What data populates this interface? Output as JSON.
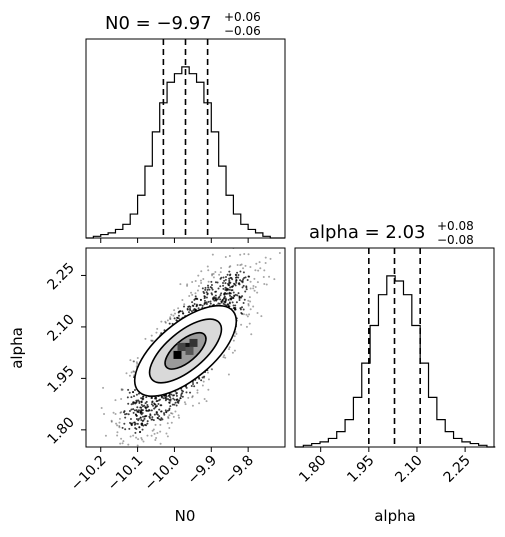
{
  "chart_data": [
    {
      "type": "histogram",
      "panel": "N0 marginal",
      "title_main": "N0 = −9.97",
      "title_upper": "+0.06",
      "title_lower": "−0.06",
      "x_range": [
        -10.24,
        -9.7
      ],
      "x_ticks": [
        -10.2,
        -10.1,
        -10.0,
        -9.9,
        -9.8
      ],
      "quantiles": [
        -10.03,
        -9.97,
        -9.91
      ],
      "bins_left": [
        -10.24,
        -10.22,
        -10.2,
        -10.18,
        -10.16,
        -10.14,
        -10.12,
        -10.1,
        -10.08,
        -10.06,
        -10.04,
        -10.02,
        -10.0,
        -9.98,
        -9.96,
        -9.94,
        -9.92,
        -9.9,
        -9.88,
        -9.86,
        -9.84,
        -9.82,
        -9.8,
        -9.78,
        -9.76,
        -9.74,
        -9.72
      ],
      "bin_width": 0.02,
      "counts": [
        0,
        1,
        2,
        3,
        5,
        8,
        14,
        25,
        42,
        62,
        79,
        91,
        96,
        100,
        96,
        91,
        79,
        62,
        42,
        25,
        14,
        8,
        5,
        3,
        1,
        0,
        0
      ]
    },
    {
      "type": "scatter-density",
      "panel": "joint",
      "x_label": "N0",
      "y_label": "alpha",
      "x_range": [
        -10.24,
        -9.7
      ],
      "y_range": [
        1.75,
        2.33
      ],
      "x_ticks": [
        -10.2,
        -10.1,
        -10.0,
        -9.9,
        -9.8
      ],
      "y_ticks": [
        1.8,
        1.95,
        2.1,
        2.25
      ],
      "x_tick_labels": [
        "−10.2",
        "−10.1",
        "−10.0",
        "−9.9",
        "−9.8"
      ],
      "y_tick_labels": [
        "1.80",
        "1.95",
        "2.10",
        "2.25"
      ],
      "center": [
        -9.97,
        2.03
      ]
    },
    {
      "type": "histogram",
      "panel": "alpha marginal",
      "title_main": "alpha = 2.03",
      "title_upper": "+0.08",
      "title_lower": "−0.08",
      "x_label": "alpha",
      "x_range": [
        1.72,
        2.34
      ],
      "x_ticks": [
        1.8,
        1.95,
        2.1,
        2.25
      ],
      "x_tick_labels": [
        "1.80",
        "1.95",
        "2.10",
        "2.25"
      ],
      "quantiles": [
        1.95,
        2.03,
        2.11
      ],
      "bins_left": [
        1.72,
        1.746,
        1.772,
        1.798,
        1.824,
        1.85,
        1.876,
        1.902,
        1.928,
        1.954,
        1.98,
        2.006,
        2.032,
        2.058,
        2.084,
        2.11,
        2.136,
        2.162,
        2.188,
        2.214,
        2.24,
        2.266,
        2.292,
        2.318
      ],
      "bin_width": 0.026,
      "counts": [
        0,
        1,
        2,
        3,
        5,
        9,
        16,
        29,
        49,
        71,
        89,
        100,
        97,
        89,
        71,
        49,
        29,
        16,
        9,
        5,
        3,
        2,
        1,
        0
      ]
    }
  ]
}
